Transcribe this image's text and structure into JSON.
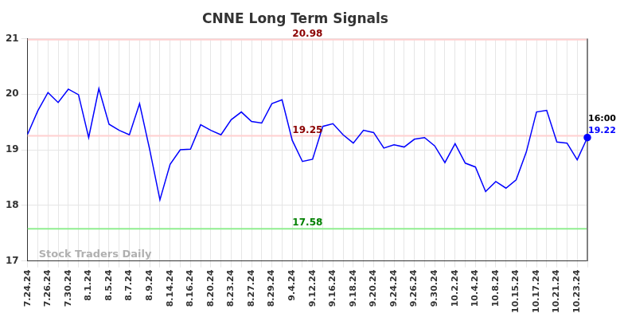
{
  "chart_data": {
    "type": "line",
    "title": "CNNE Long Term Signals",
    "categories": [
      "7.24.24",
      null,
      "7.26.24",
      null,
      "7.30.24",
      null,
      "8.1.24",
      null,
      "8.5.24",
      null,
      "8.7.24",
      null,
      "8.9.24",
      null,
      "8.14.24",
      null,
      "8.16.24",
      null,
      "8.20.24",
      null,
      "8.23.24",
      null,
      "8.27.24",
      null,
      "8.29.24",
      null,
      "9.4.24",
      null,
      "9.12.24",
      null,
      "9.16.24",
      null,
      "9.18.24",
      null,
      "9.20.24",
      null,
      "9.24.24",
      null,
      "9.26.24",
      null,
      "9.30.24",
      null,
      "10.2.24",
      null,
      "10.4.24",
      null,
      "10.8.24",
      null,
      "10.15.24",
      null,
      "10.17.24",
      null,
      "10.21.24",
      null,
      "10.23.24",
      null
    ],
    "values": [
      19.28,
      19.7,
      20.03,
      19.85,
      20.09,
      19.99,
      19.22,
      20.1,
      19.46,
      19.35,
      19.27,
      19.83,
      19.0,
      18.1,
      18.74,
      19.0,
      19.01,
      19.45,
      19.35,
      19.27,
      19.54,
      19.68,
      19.51,
      19.48,
      19.83,
      19.9,
      19.17,
      18.79,
      18.83,
      19.42,
      19.47,
      19.27,
      19.12,
      19.35,
      19.31,
      19.03,
      19.09,
      19.05,
      19.19,
      19.22,
      19.07,
      18.77,
      19.11,
      18.76,
      18.69,
      18.25,
      18.43,
      18.31,
      18.46,
      18.96,
      19.68,
      19.71,
      19.14,
      19.12,
      18.82,
      19.22
    ],
    "color": "#0000ff",
    "ylim": [
      17,
      21
    ],
    "yticks": [
      17,
      18,
      19,
      20,
      21
    ],
    "grid": true,
    "annotations": [
      {
        "value": 20.98,
        "color": "#8b0000",
        "line_color": "#ffd0d0"
      },
      {
        "value": 19.25,
        "color": "#8b0000",
        "line_color": "#ffd0d0"
      },
      {
        "value": 17.58,
        "color": "#008000",
        "line_color": "#90ee90"
      }
    ],
    "last_point": {
      "time_label": "16:00",
      "value": 19.22,
      "color": "#0000ff"
    },
    "watermark": "Stock Traders Daily"
  }
}
